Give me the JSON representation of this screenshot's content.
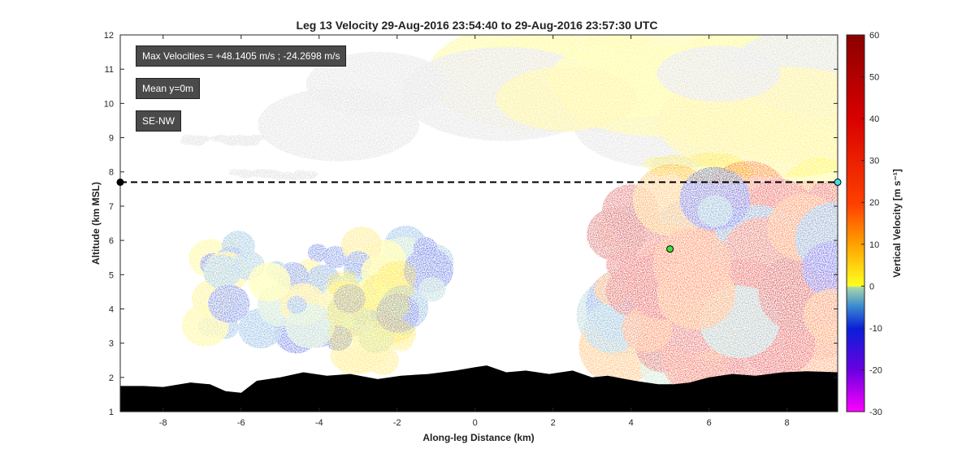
{
  "chart_data": {
    "type": "heatmap",
    "title": "Leg 13 Velocity 29-Aug-2016 23:54:40 to 29-Aug-2016 23:57:30 UTC",
    "xlabel": "Along-leg Distance (km)",
    "ylabel": "Altitude (km MSL)",
    "xlim": [
      -9.1,
      9.3
    ],
    "ylim": [
      1,
      12
    ],
    "x_ticks": [
      "-8",
      "-6",
      "-4",
      "-2",
      "0",
      "2",
      "4",
      "6",
      "8"
    ],
    "y_ticks": [
      "1",
      "2",
      "3",
      "4",
      "5",
      "6",
      "7",
      "8",
      "9",
      "10",
      "11",
      "12"
    ],
    "colorbar": {
      "label": "Vertical Velocity [m s⁻¹]",
      "range": [
        -30,
        60
      ],
      "ticks": [
        "-30",
        "-20",
        "-10",
        "0",
        "10",
        "20",
        "30",
        "40",
        "50",
        "60"
      ],
      "colors": {
        "neg30": "#ff00ff",
        "neg20": "#6a00e0",
        "neg10": "#0a1ed8",
        "neg5": "#3a8ad0",
        "zero": "#a8d8a8",
        "pos1": "#ffff20",
        "pos10": "#ffa500",
        "pos20": "#ff4000",
        "pos40": "#d80000",
        "pos60": "#8b0000"
      }
    },
    "flight_track": {
      "altitude_km": 7.7,
      "style": "dashed",
      "start_x_km": -9.1,
      "end_x_km": 9.3
    },
    "markers": [
      {
        "name": "track-start",
        "x": -9.1,
        "y": 7.7,
        "color": "#000000"
      },
      {
        "name": "track-end",
        "x": 9.3,
        "y": 7.7,
        "color": "#40e0e0"
      },
      {
        "name": "cell-marker",
        "x": 5.0,
        "y": 5.75,
        "color": "#40e040"
      }
    ],
    "annotations": [
      "Max Velocities = +48.1405 m/s ; -24.2698 m/s",
      "Mean y=0m",
      "SE-NW"
    ],
    "terrain": {
      "x": [
        -9.1,
        -8.5,
        -8.0,
        -7.3,
        -6.8,
        -6.4,
        -6.0,
        -5.6,
        -5.0,
        -4.4,
        -3.8,
        -3.2,
        -2.5,
        -1.9,
        -1.2,
        -0.5,
        0.0,
        0.3,
        0.8,
        1.3,
        1.9,
        2.5,
        3.0,
        3.4,
        4.1,
        4.7,
        5.1,
        5.5,
        6.0,
        6.6,
        7.2,
        7.9,
        8.5,
        9.3
      ],
      "y": [
        1.75,
        1.75,
        1.72,
        1.85,
        1.8,
        1.6,
        1.55,
        1.9,
        2.0,
        2.15,
        2.05,
        2.1,
        1.95,
        2.05,
        2.1,
        2.2,
        2.3,
        2.35,
        2.15,
        2.2,
        2.1,
        2.2,
        2.0,
        2.05,
        1.9,
        1.8,
        1.8,
        1.85,
        2.0,
        2.1,
        2.05,
        2.15,
        2.18,
        2.15
      ]
    },
    "echoes": [
      {
        "type": "layer",
        "x": [
          -3.5,
          9.3
        ],
        "y": [
          9.2,
          11.5
        ],
        "w_range": [
          -1,
          3
        ]
      },
      {
        "type": "layer",
        "x": [
          -7.5,
          -5.5
        ],
        "y": [
          8.85,
          9.0
        ],
        "w_range": [
          -1,
          0
        ]
      },
      {
        "type": "layer",
        "x": [
          -6.3,
          -4.2
        ],
        "y": [
          7.85,
          8.0
        ],
        "w_range": [
          -1,
          0
        ]
      },
      {
        "type": "layer",
        "x": [
          4.7,
          6.7
        ],
        "y": [
          7.9,
          8.3
        ],
        "w_range": [
          0,
          5
        ]
      },
      {
        "type": "cloud",
        "x": [
          -7.0,
          -1.0
        ],
        "y": [
          3.0,
          6.0
        ],
        "w_range": [
          -10,
          5
        ]
      },
      {
        "type": "cloud",
        "x": [
          -3.6,
          -1.8
        ],
        "y": [
          2.4,
          5.0
        ],
        "w_range": [
          1,
          5
        ]
      },
      {
        "type": "cloud",
        "x": [
          3.5,
          9.3
        ],
        "y": [
          2.0,
          7.4
        ],
        "w_range": [
          -15,
          48
        ]
      }
    ]
  }
}
